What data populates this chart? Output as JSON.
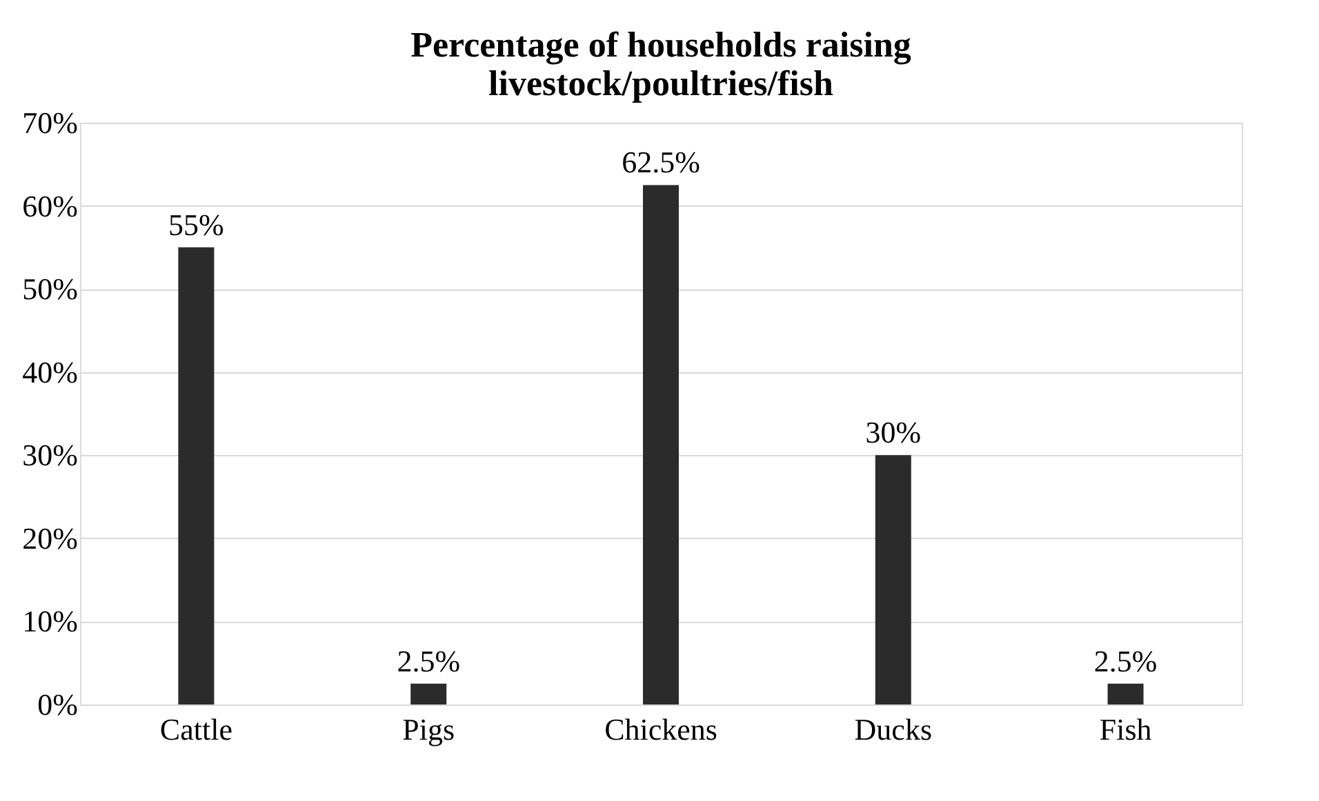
{
  "chart_data": {
    "type": "bar",
    "title": "Percentage of households raising livestock/poultries/fish",
    "categories": [
      "Cattle",
      "Pigs",
      "Chickens",
      "Ducks",
      "Fish"
    ],
    "values": [
      55,
      2.5,
      62.5,
      30,
      2.5
    ],
    "value_labels": [
      "55%",
      "2.5%",
      "62.5%",
      "30%",
      "2.5%"
    ],
    "color": "#2b2b2b",
    "ylim": [
      0,
      70
    ],
    "yticks": [
      {
        "value": 0,
        "label": "0%"
      },
      {
        "value": 10,
        "label": "10%"
      },
      {
        "value": 20,
        "label": "20%"
      },
      {
        "value": 30,
        "label": "30%"
      },
      {
        "value": 40,
        "label": "40%"
      },
      {
        "value": 50,
        "label": "50%"
      },
      {
        "value": 60,
        "label": "60%"
      },
      {
        "value": 70,
        "label": "70%"
      }
    ],
    "grid": "y"
  }
}
